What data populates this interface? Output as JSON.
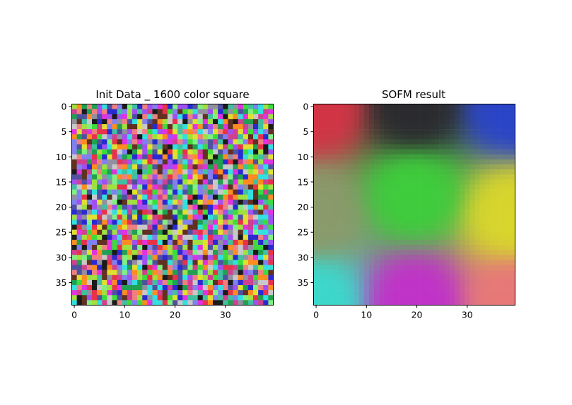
{
  "chart_data": [
    {
      "type": "heatmap",
      "title": "Init Data _ 1600 color square",
      "grid_size": [
        40,
        40
      ],
      "xlim": [
        -0.5,
        39.5
      ],
      "ylim": [
        39.5,
        -0.5
      ],
      "xticks": [
        0,
        10,
        20,
        30
      ],
      "yticks": [
        0,
        5,
        10,
        15,
        20,
        25,
        30,
        35
      ],
      "content": "random RGB colors per cell",
      "grid": false
    },
    {
      "type": "heatmap",
      "title": "SOFM result",
      "grid_size": [
        40,
        40
      ],
      "xlim": [
        -0.5,
        39.5
      ],
      "ylim": [
        39.5,
        -0.5
      ],
      "xticks": [
        0,
        10,
        20,
        30
      ],
      "yticks": [
        0,
        5,
        10,
        15,
        20,
        25,
        30,
        35
      ],
      "content": "smooth color field",
      "corner_colors": {
        "top-left": "#d23444",
        "top-center": "#2a2a2e",
        "top-right": "#2a44c8",
        "center": "#3ecc3c",
        "right-middle": "#d8d62c",
        "bottom-left": "#3cd8cc",
        "bottom-center": "#c032c8",
        "bottom-right": "#e87878",
        "left-middle": "#8a9a6a"
      },
      "grid": false
    }
  ]
}
